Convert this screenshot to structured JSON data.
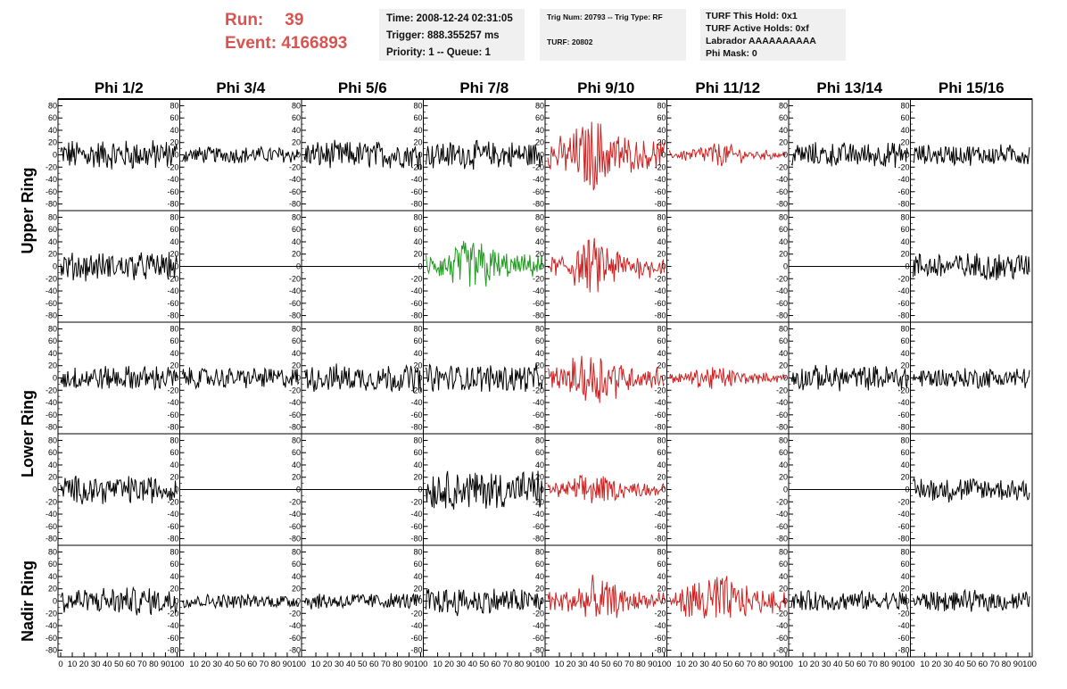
{
  "header": {
    "run_label": "Run:",
    "run_value": "39",
    "event_label": "Event:",
    "event_value": "4166893",
    "time_line": "Time: 2008-12-24 02:31:05",
    "trigger_line": "Trigger: 888.355257 ms",
    "priority_line": "Priority: 1 -- Queue: 1",
    "trig_line": "Trig Num: 20793 -- Trig Type: RF",
    "turf_line": "TURF: 20802",
    "turf_hold_line": "TURF This Hold: 0x1",
    "turf_active_line": "TURF Active Holds: 0xf",
    "labrador_line": "Labrador AAAAAAAAAA",
    "phi_mask_line": "Phi Mask: 0"
  },
  "colors": {
    "normal": "#000000",
    "triggered": "#cc2222",
    "selected": "#229922",
    "text_red": "#d9534f",
    "info_bg": "#f0f0f0"
  },
  "chart_data": {
    "type": "line",
    "columns": [
      "Phi 1/2",
      "Phi 3/4",
      "Phi 5/6",
      "Phi 7/8",
      "Phi 9/10",
      "Phi 11/12",
      "Phi 13/14",
      "Phi 15/16"
    ],
    "ring_labels": [
      "Upper Ring",
      "Lower Ring",
      "Nadir Ring"
    ],
    "ylim": [
      -85,
      85
    ],
    "xlim": [
      0,
      100
    ],
    "yticks": [
      -80,
      -60,
      -40,
      -20,
      0,
      20,
      40,
      60,
      80
    ],
    "xticks": [
      0,
      10,
      20,
      30,
      40,
      50,
      60,
      70,
      80,
      90,
      100
    ],
    "legend": "none",
    "grid": false,
    "trace_styles": {
      "rows": [
        [
          "normal",
          "normal",
          "normal",
          "normal",
          "triggered",
          "triggered",
          "normal",
          "normal"
        ],
        [
          "normal",
          "flat",
          "flat",
          "selected",
          "triggered",
          "empty",
          "flat",
          "normal"
        ],
        [
          "normal",
          "normal",
          "normal",
          "normal",
          "triggered",
          "triggered",
          "normal",
          "normal"
        ],
        [
          "normal",
          "flat",
          "flat",
          "normal",
          "triggered",
          "empty",
          "flat",
          "normal"
        ],
        [
          "normal",
          "normal",
          "normal",
          "normal",
          "triggered",
          "triggered",
          "normal",
          "normal"
        ]
      ]
    },
    "approx_amplitude": {
      "rows": [
        [
          22,
          12,
          20,
          20,
          45,
          15,
          18,
          15
        ],
        [
          20,
          0,
          0,
          35,
          35,
          0,
          0,
          20
        ],
        [
          18,
          15,
          20,
          20,
          35,
          15,
          18,
          15
        ],
        [
          20,
          0,
          0,
          28,
          20,
          0,
          0,
          18
        ],
        [
          20,
          10,
          12,
          20,
          30,
          35,
          15,
          15
        ]
      ]
    }
  }
}
